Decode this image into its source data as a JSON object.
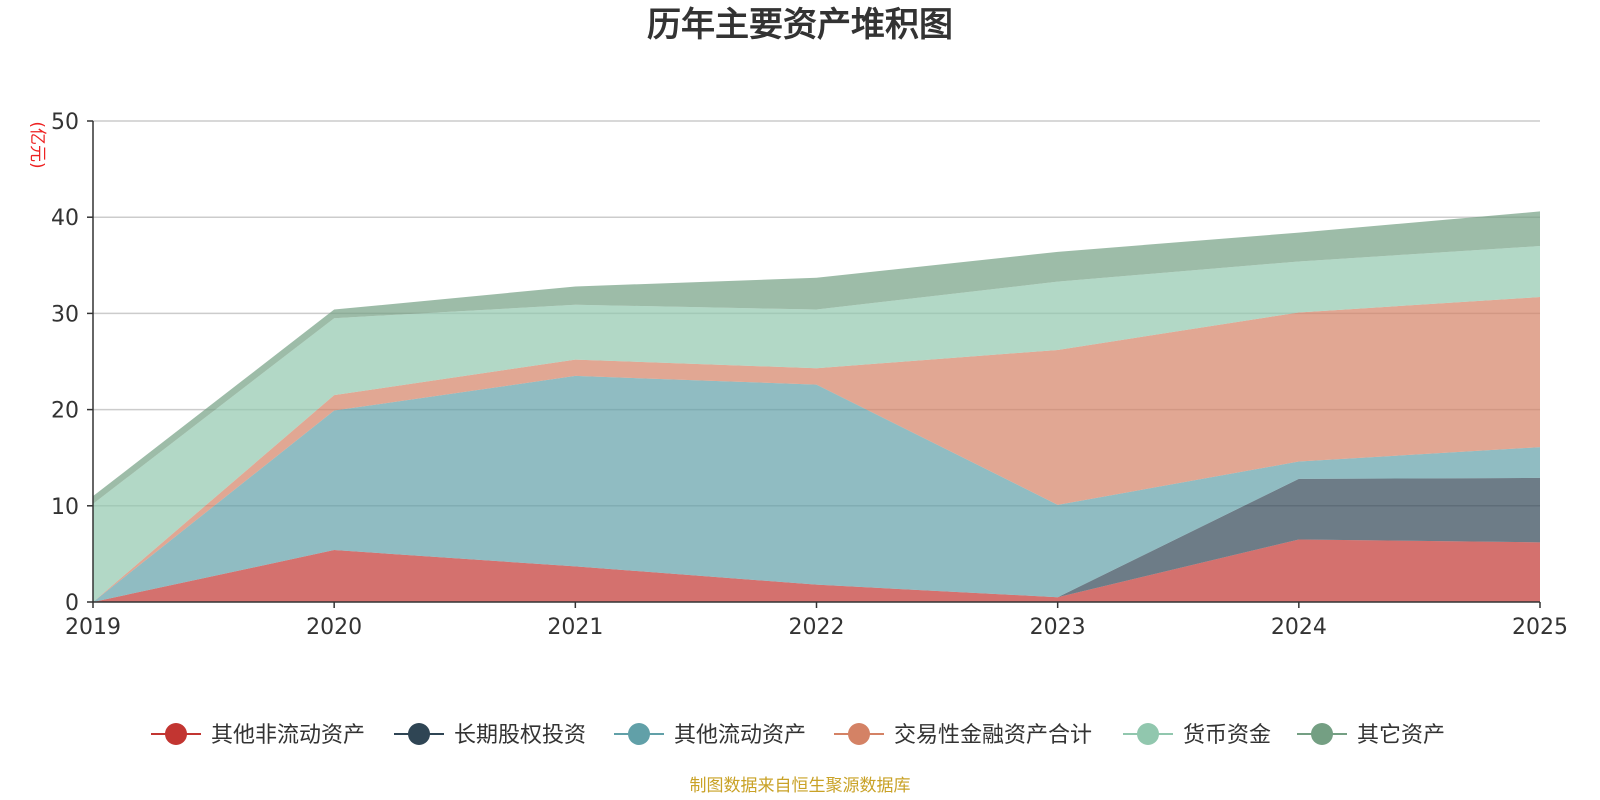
{
  "chart_data": {
    "type": "area",
    "stacked": true,
    "title": "历年主要资产堆积图",
    "unit": "(亿元)",
    "x": [
      "2019",
      "2020",
      "2021",
      "2022",
      "2023",
      "2024",
      "2025"
    ],
    "ylim": [
      0,
      50
    ],
    "yticks": [
      "0",
      "10",
      "20",
      "30",
      "40",
      "50"
    ],
    "grid": true,
    "legend_position": "bottom",
    "series": [
      {
        "name": "其他非流动资产",
        "color": "#c23531",
        "values": [
          0,
          5.4,
          3.7,
          1.8,
          0.5,
          6.5,
          6.2
        ]
      },
      {
        "name": "长期股权投资",
        "color": "#2f4554",
        "values": [
          0,
          0,
          0,
          0,
          0,
          6.3,
          6.7
        ]
      },
      {
        "name": "其他流动资产",
        "color": "#61a0a8",
        "values": [
          0,
          14.5,
          19.8,
          20.8,
          9.6,
          1.8,
          3.2
        ]
      },
      {
        "name": "交易性金融资产合计",
        "color": "#d48265",
        "values": [
          0,
          1.6,
          1.7,
          1.7,
          16.1,
          15.5,
          15.6
        ]
      },
      {
        "name": "货币资金",
        "color": "#91c7ae",
        "values": [
          10.2,
          8.0,
          5.7,
          6.1,
          7.1,
          5.3,
          5.3
        ]
      },
      {
        "name": "其它资产",
        "color": "#749f83",
        "values": [
          0.8,
          0.9,
          1.9,
          3.3,
          3.1,
          3.0,
          3.6
        ]
      }
    ],
    "source": "制图数据来自恒生聚源数据库"
  }
}
